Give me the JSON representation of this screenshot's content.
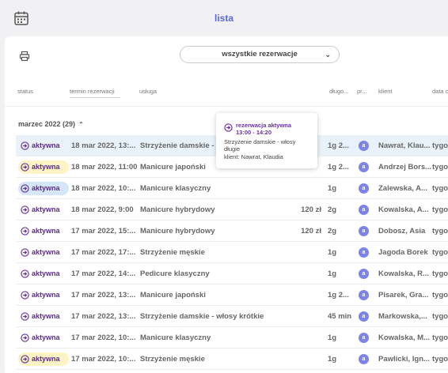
{
  "header": {
    "title": "lista",
    "calendar_icon": "calendar-icon"
  },
  "toolbar": {
    "print_icon": "printer-icon",
    "filter_value": "wszystkie rezerwacje",
    "filter_icon": "chevron-down-icon"
  },
  "columns": {
    "status": "status",
    "term": "termin rezerwacji",
    "service": "usługa",
    "duration": "długo...",
    "pr": "pr...",
    "client": "klient",
    "date": "data c"
  },
  "group": {
    "label": "marzec 2022 (29)",
    "caret": "⌃"
  },
  "tooltip": {
    "status": "rezerwacja aktywna",
    "time": "13:00 - 14:20",
    "service": "Strzyżenie damskie - włosy długie",
    "client": "klient: Nawrat, Klaudia"
  },
  "colors": {
    "accent": "#5a67d8",
    "status_purple": "#6b2fa0",
    "avatar": "#7c84e6",
    "row_selected": "#e9f1fb",
    "badge_yellow": "#fdf3c4",
    "badge_blue": "#d6e6fa"
  },
  "rows": [
    {
      "status": "aktywna",
      "badge": "none",
      "selected": true,
      "term": "18 mar 2022, 13:...",
      "service": "Strzyżenie damskie - włosy długie",
      "price": "",
      "duration": "1g 2...",
      "avatar": "a",
      "client": "Nawrat, Klau...",
      "date": "tygo"
    },
    {
      "status": "aktywna",
      "badge": "yellow",
      "selected": false,
      "term": "18 mar 2022, 11:00",
      "service": "Manicure japoński",
      "price": "",
      "duration": "1g 2...",
      "avatar": "a",
      "client": "Andrzej Bors...",
      "date": "tygo"
    },
    {
      "status": "aktywna",
      "badge": "blue",
      "selected": false,
      "term": "18 mar 2022, 10:...",
      "service": "Manicure klasyczny",
      "price": "",
      "duration": "1g",
      "avatar": "a",
      "client": "Zalewska, A...",
      "date": "tygo"
    },
    {
      "status": "aktywna",
      "badge": "none",
      "selected": false,
      "term": "18 mar 2022, 9:00",
      "service": "Manicure hybrydowy",
      "price": "120 zł",
      "duration": "2g",
      "avatar": "a",
      "client": "Kowalska, A...",
      "date": "tygo"
    },
    {
      "status": "aktywna",
      "badge": "none",
      "selected": false,
      "term": "17 mar 2022, 15:...",
      "service": "Manicure hybrydowy",
      "price": "120 zł",
      "duration": "2g",
      "avatar": "a",
      "client": "Dobosz, Asia",
      "date": "tygo"
    },
    {
      "status": "aktywna",
      "badge": "none",
      "selected": false,
      "term": "17 mar 2022, 17:...",
      "service": "Strzyżenie męskie",
      "price": "",
      "duration": "1g",
      "avatar": "a",
      "client": "Jagoda Borek",
      "date": "tygo"
    },
    {
      "status": "aktywna",
      "badge": "none",
      "selected": false,
      "term": "17 mar 2022, 14:...",
      "service": "Pedicure klasyczny",
      "price": "",
      "duration": "1g",
      "avatar": "a",
      "client": "Kowalska, R...",
      "date": "tygo"
    },
    {
      "status": "aktywna",
      "badge": "none",
      "selected": false,
      "term": "17 mar 2022, 13:...",
      "service": "Manicure japoński",
      "price": "",
      "duration": "1g 2...",
      "avatar": "a",
      "client": "Pisarek, Gra...",
      "date": "tygo"
    },
    {
      "status": "aktywna",
      "badge": "none",
      "selected": false,
      "term": "17 mar 2022, 13:...",
      "service": "Strzyżenie damskie - włosy krótkie",
      "price": "",
      "duration": "45 min",
      "avatar": "a",
      "client": "Markowska,...",
      "date": "tygo"
    },
    {
      "status": "aktywna",
      "badge": "none",
      "selected": false,
      "term": "17 mar 2022, 10:...",
      "service": "Manicure klasyczny",
      "price": "",
      "duration": "1g",
      "avatar": "a",
      "client": "Kowalska, M...",
      "date": "tygo"
    },
    {
      "status": "aktywna",
      "badge": "yellow",
      "selected": false,
      "term": "17 mar 2022, 10:...",
      "service": "Strzyżenie męskie",
      "price": "",
      "duration": "1g",
      "avatar": "a",
      "client": "Pawlicki, Ign...",
      "date": "tygo"
    }
  ]
}
